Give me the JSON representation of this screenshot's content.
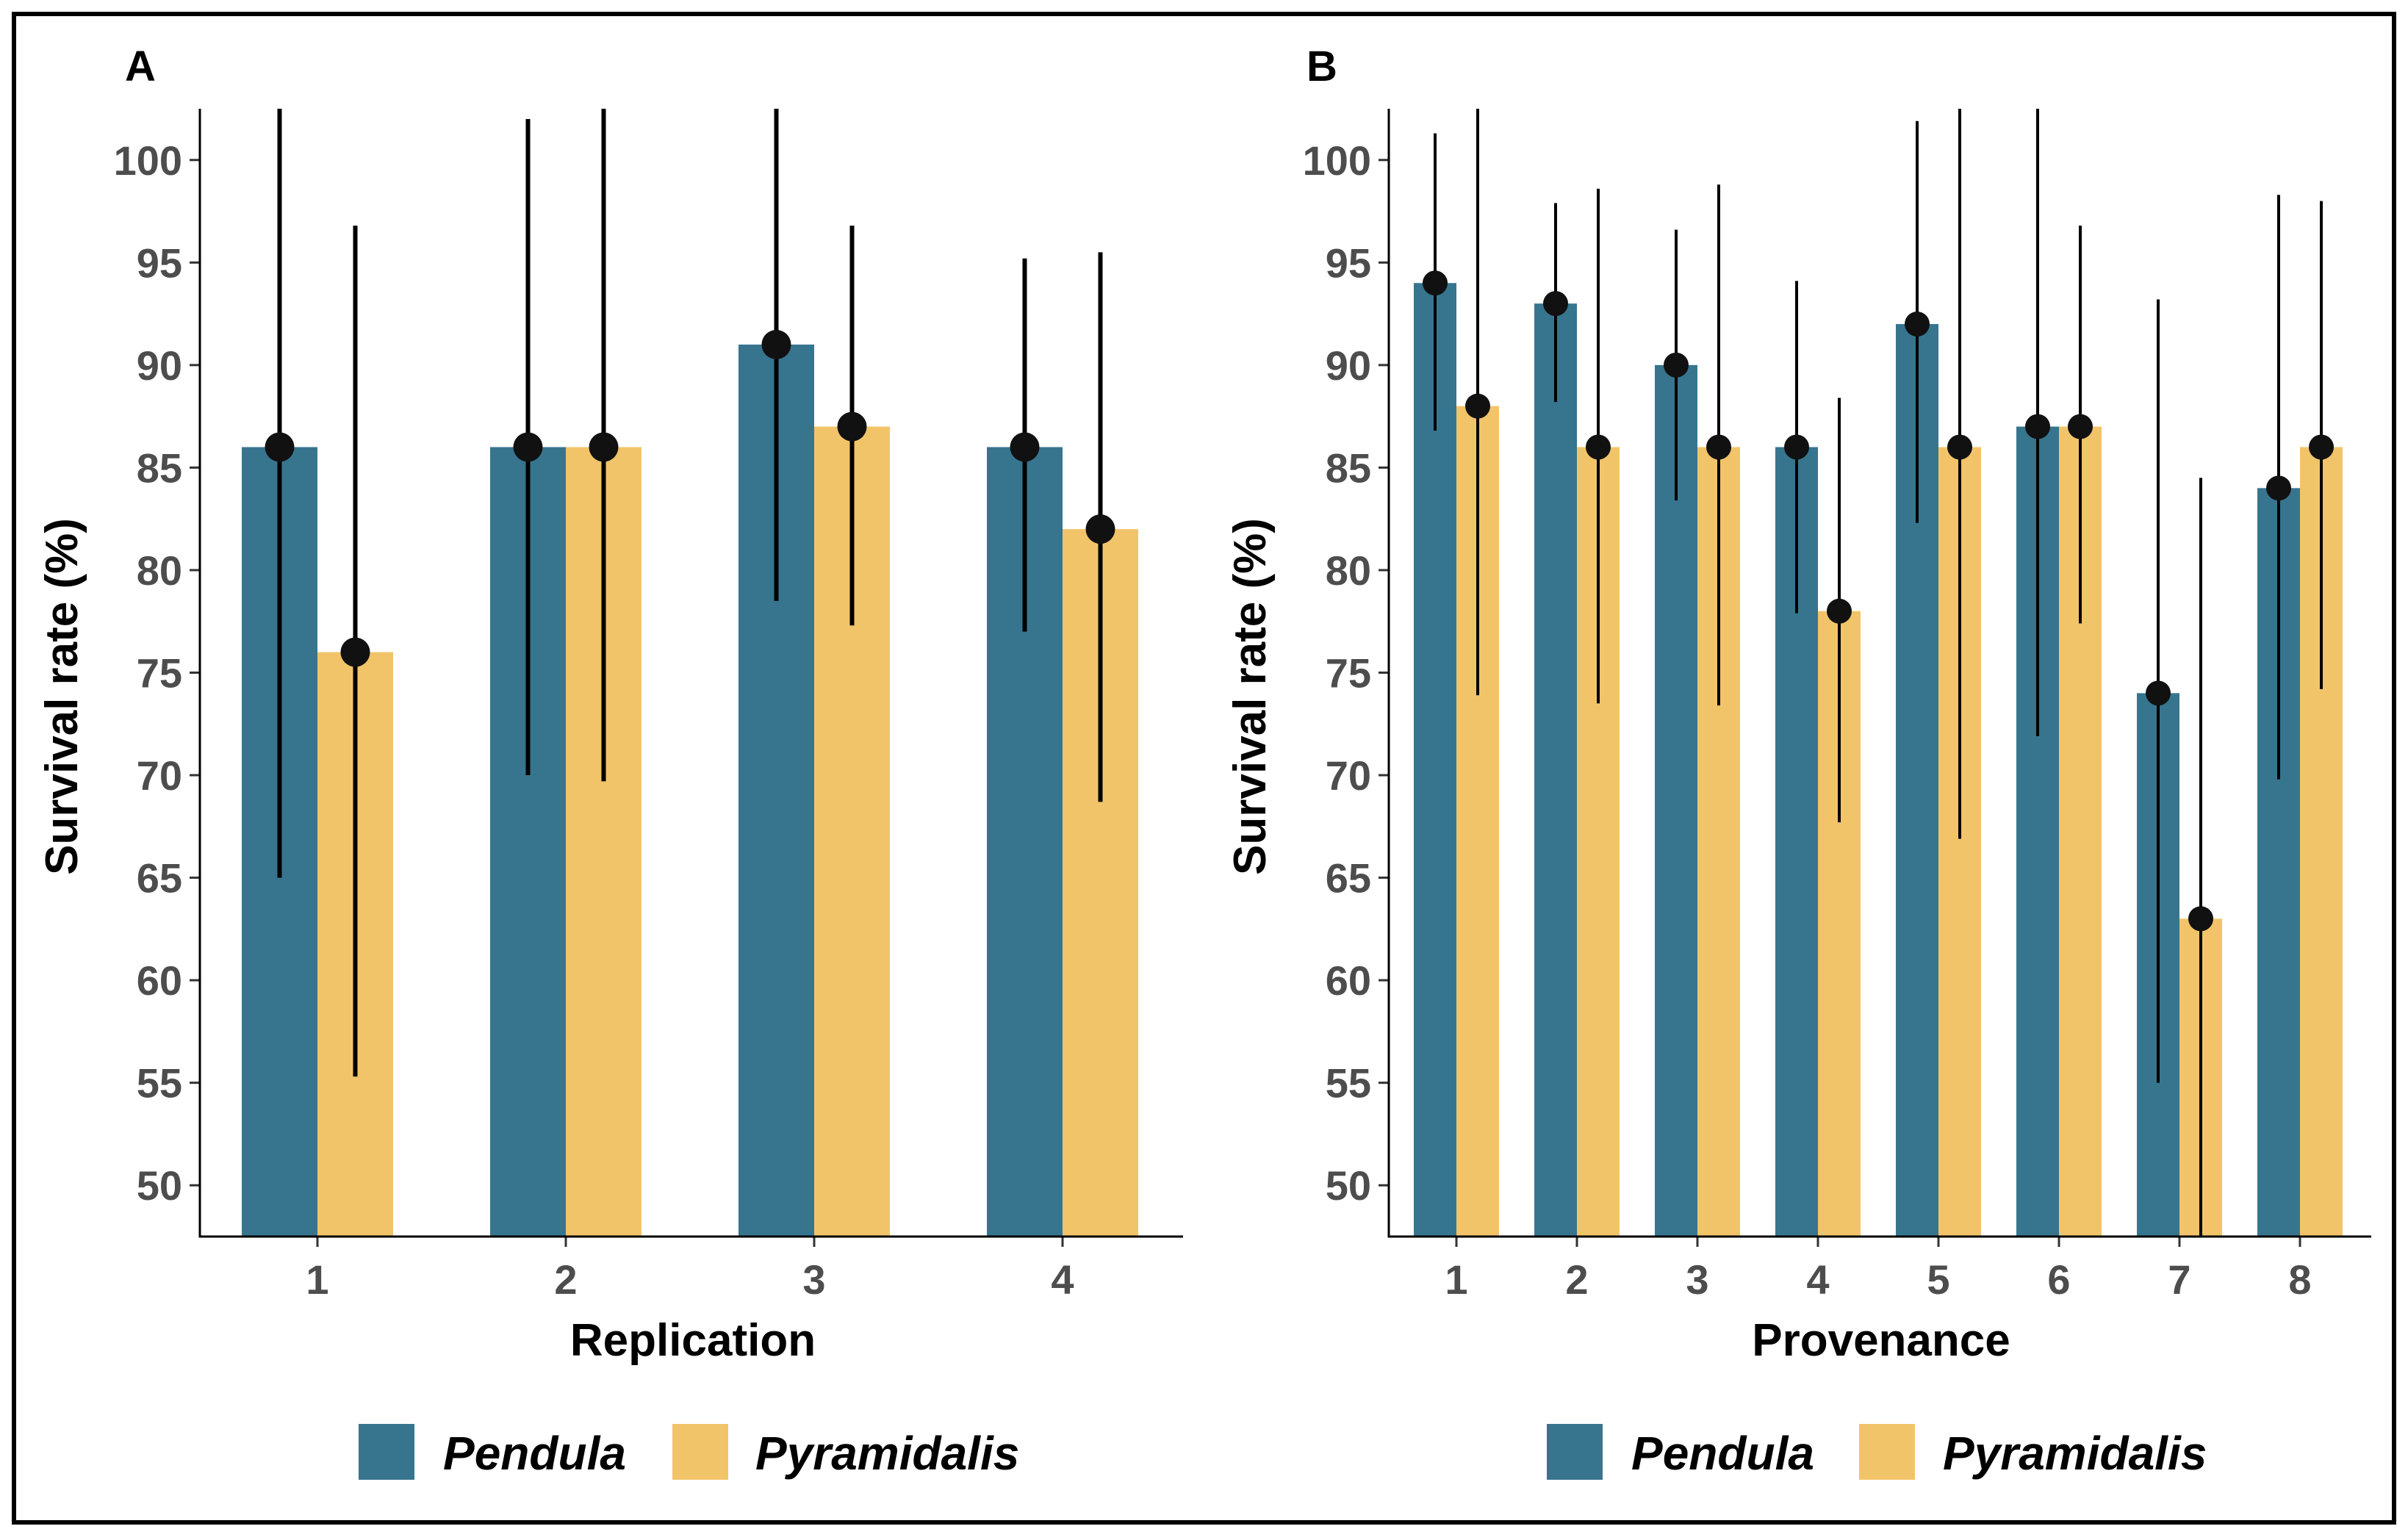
{
  "colors": {
    "pendula": "#37758f",
    "pyramidalis": "#f2c46a",
    "point": "#111111"
  },
  "legend": {
    "pendula_label": "Pendula",
    "pyramidalis_label": "Pyramidalis"
  },
  "chart_data": [
    {
      "type": "bar",
      "panel_label": "A",
      "xlabel": "Replication",
      "ylabel": "Survival rate (%)",
      "ylim": [
        47.5,
        102.5
      ],
      "yticks": [
        50,
        55,
        60,
        65,
        70,
        75,
        80,
        85,
        90,
        95,
        100
      ],
      "categories": [
        "1",
        "2",
        "3",
        "4"
      ],
      "series": [
        {
          "name": "Pendula",
          "values": [
            86,
            86,
            91,
            86
          ],
          "err_low": [
            65,
            70,
            78.5,
            77
          ],
          "err_high": [
            102.5,
            102,
            102.5,
            95.2
          ]
        },
        {
          "name": "Pyramidalis",
          "values": [
            76,
            86,
            87,
            82
          ],
          "err_low": [
            55.3,
            69.7,
            77.3,
            68.7
          ],
          "err_high": [
            96.8,
            102.5,
            96.8,
            95.5
          ]
        }
      ],
      "legend_position": "bottom"
    },
    {
      "type": "bar",
      "panel_label": "B",
      "xlabel": "Provenance",
      "ylabel": "Survival rate (%)",
      "ylim": [
        47.5,
        102.5
      ],
      "yticks": [
        50,
        55,
        60,
        65,
        70,
        75,
        80,
        85,
        90,
        95,
        100
      ],
      "categories": [
        "1",
        "2",
        "3",
        "4",
        "5",
        "6",
        "7",
        "8"
      ],
      "series": [
        {
          "name": "Pendula",
          "values": [
            94,
            93,
            90,
            86,
            92,
            87,
            74,
            84
          ],
          "err_low": [
            86.8,
            88.2,
            83.4,
            77.9,
            82.3,
            71.9,
            55,
            69.8
          ],
          "err_high": [
            101.3,
            97.9,
            96.6,
            94.1,
            101.9,
            102.5,
            93.2,
            98.3
          ]
        },
        {
          "name": "Pyramidalis",
          "values": [
            88,
            86,
            86,
            78,
            86,
            87,
            63,
            86
          ],
          "err_low": [
            73.9,
            73.5,
            73.4,
            67.7,
            66.9,
            77.4,
            47.5,
            74.2
          ],
          "err_high": [
            102.5,
            98.6,
            98.8,
            88.4,
            102.5,
            96.8,
            84.5,
            98
          ]
        }
      ],
      "legend_position": "bottom"
    }
  ]
}
